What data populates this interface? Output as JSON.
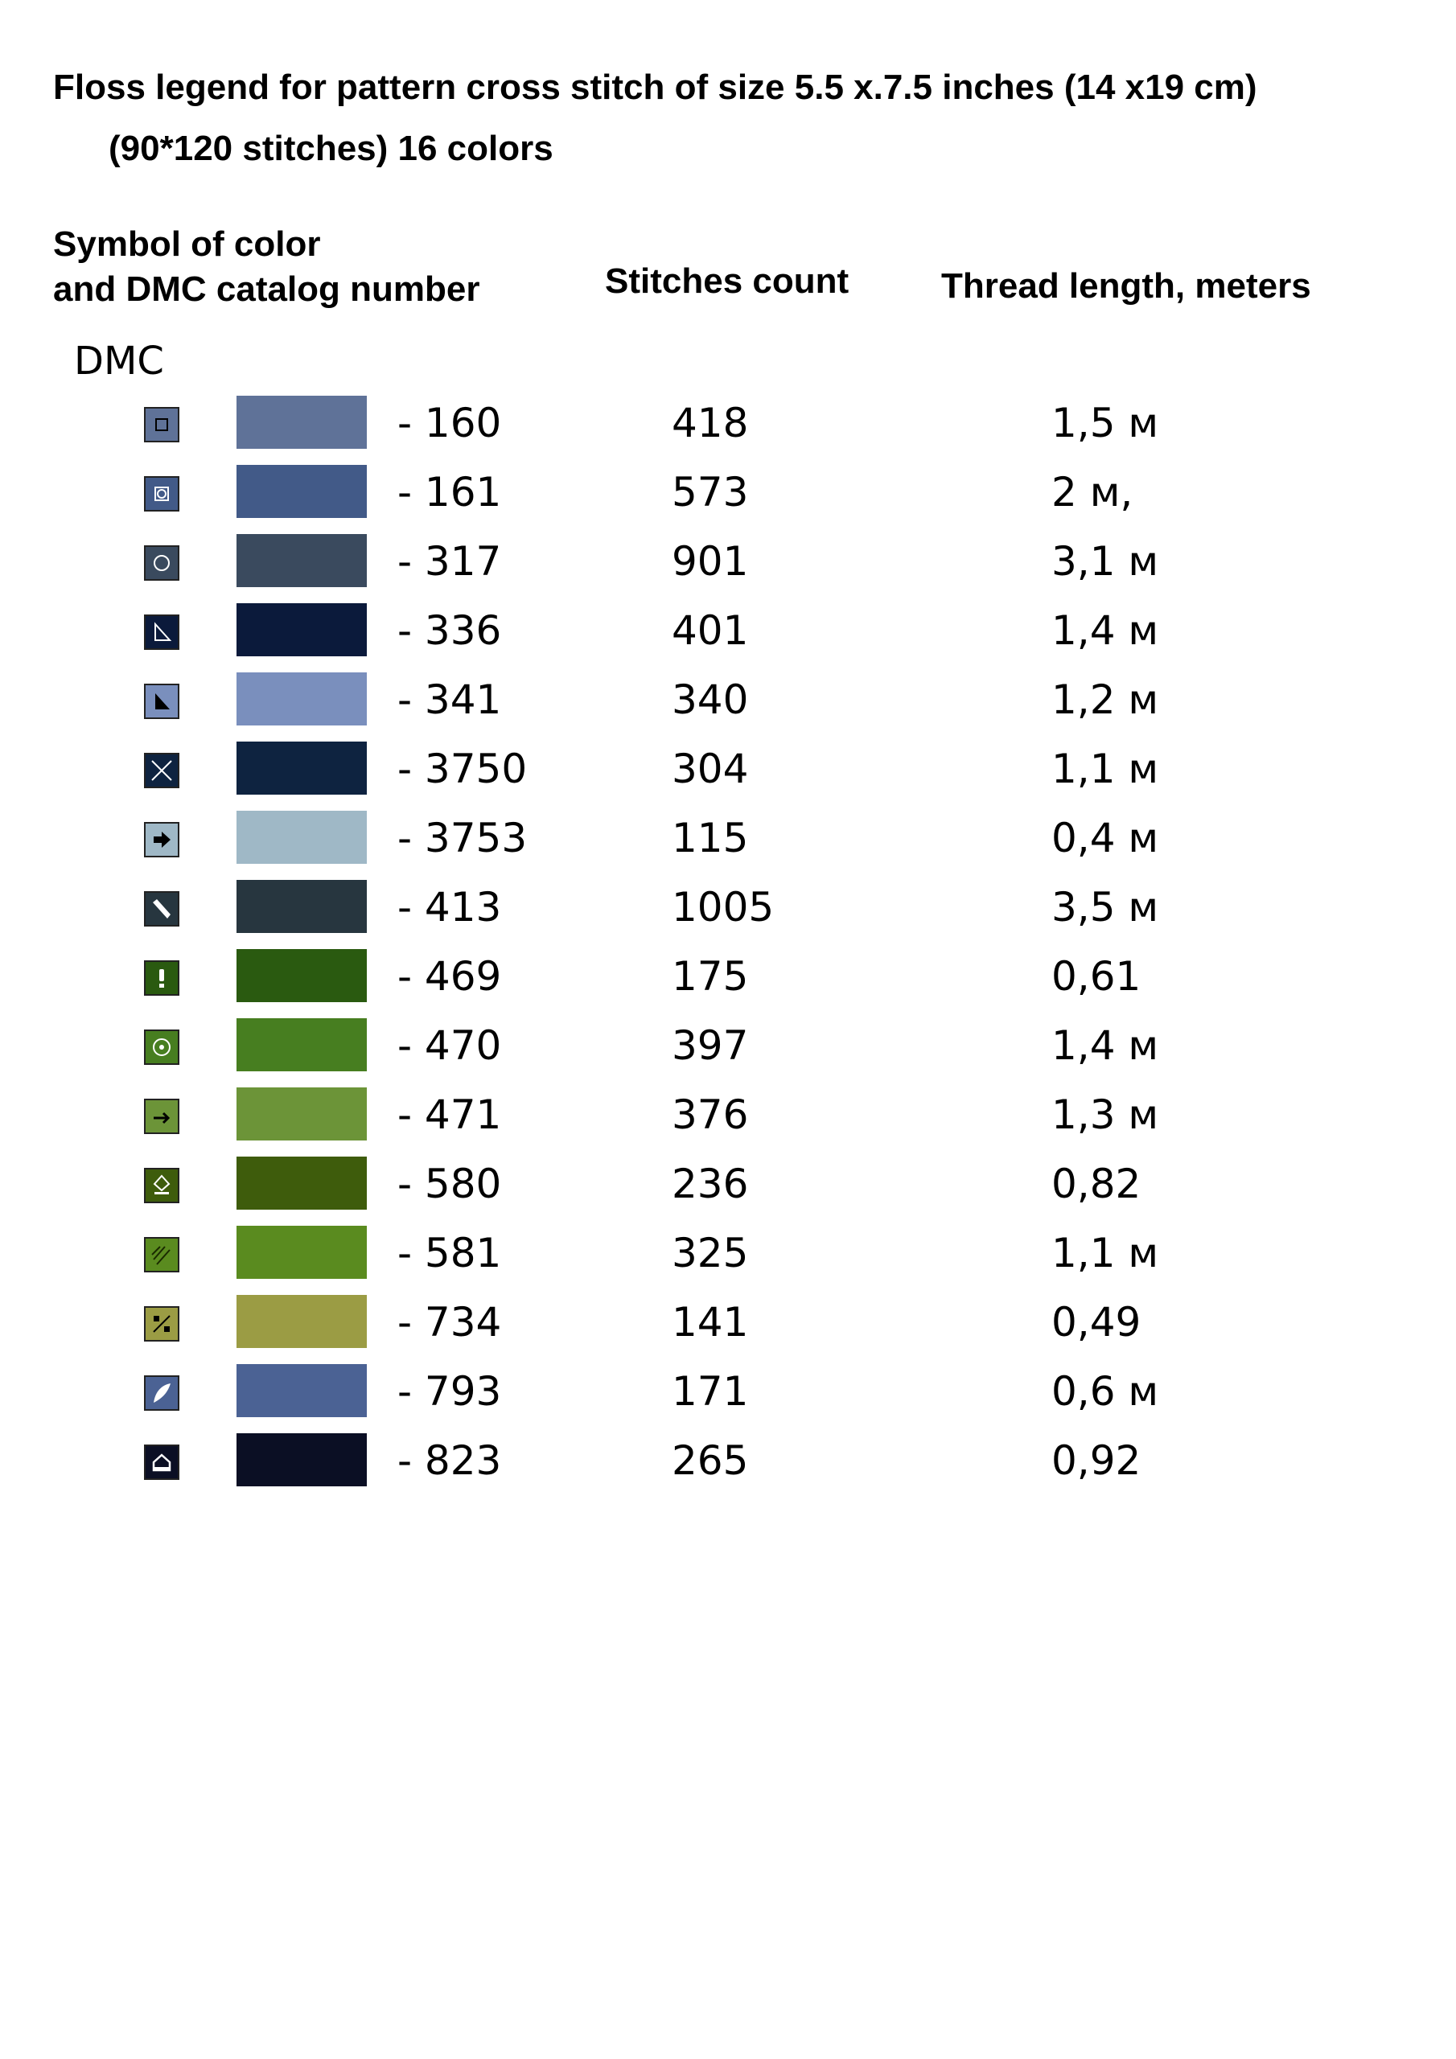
{
  "title_line1": "Floss legend for pattern cross stitch of size 5.5 x.7.5 inches (14 x19 cm)",
  "title_line2": "(90*120 stitches) 16 colors",
  "headers": {
    "symbol_line1": "Symbol of color",
    "symbol_line2": "and DMC catalog number",
    "stitches": "Stitches count",
    "thread": "Thread length, meters"
  },
  "brand": "DMC",
  "rows": [
    {
      "code": "- 160",
      "count": "418",
      "length": "1,5 м",
      "color": "#5f7298",
      "icon": "square-outline-icon"
    },
    {
      "code": "- 161",
      "count": "573",
      "length": "2 м,",
      "color": "#425a88",
      "icon": "square-circle-icon"
    },
    {
      "code": "- 317",
      "count": "901",
      "length": "3,1 м",
      "color": "#3a4a5e",
      "icon": "circle-outline-icon"
    },
    {
      "code": "- 336",
      "count": "401",
      "length": "1,4 м",
      "color": "#0b1a3b",
      "icon": "triangle-outline-icon"
    },
    {
      "code": "- 341",
      "count": "340",
      "length": "1,2 м",
      "color": "#7a8fbd",
      "icon": "triangle-filled-icon"
    },
    {
      "code": "- 3750",
      "count": "304",
      "length": "1,1 м",
      "color": "#0e2340",
      "icon": "x-cross-icon"
    },
    {
      "code": "- 3753",
      "count": "115",
      "length": "0,4 м",
      "color": "#9fb8c6",
      "icon": "arrow-right-filled-icon"
    },
    {
      "code": "- 413",
      "count": "1005",
      "length": "3,5 м",
      "color": "#27363f",
      "icon": "slash-filled-icon"
    },
    {
      "code": "- 469",
      "count": "175",
      "length": "0,61",
      "color": "#2a5a10",
      "icon": "exclamation-icon"
    },
    {
      "code": "- 470",
      "count": "397",
      "length": "1,4 м",
      "color": "#477e20",
      "icon": "circle-dot-icon"
    },
    {
      "code": "- 471",
      "count": "376",
      "length": "1,3 м",
      "color": "#6c9438",
      "icon": "arrow-right-icon"
    },
    {
      "code": "- 580",
      "count": "236",
      "length": "0,82",
      "color": "#3e5c0c",
      "icon": "diamond-cup-icon"
    },
    {
      "code": "- 581",
      "count": "325",
      "length": "1,1 м",
      "color": "#5a8b1f",
      "icon": "double-slash-icon"
    },
    {
      "code": "- 734",
      "count": "141",
      "length": "0,49",
      "color": "#9b9c44",
      "icon": "percent-icon"
    },
    {
      "code": "- 793",
      "count": "171",
      "length": "0,6 м",
      "color": "#4b6294",
      "icon": "leaf-icon"
    },
    {
      "code": "- 823",
      "count": "265",
      "length": "0,92",
      "color": "#0b0f24",
      "icon": "house-outline-icon"
    }
  ]
}
